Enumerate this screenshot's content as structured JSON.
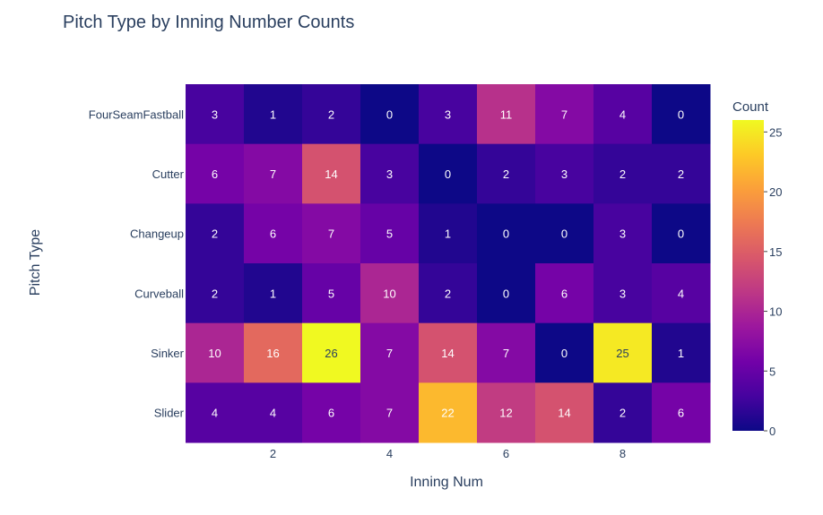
{
  "chart_data": {
    "type": "heatmap",
    "title": "Pitch Type by Inning Number Counts",
    "xlabel": "Inning Num",
    "ylabel": "Pitch Type",
    "x": [
      1,
      2,
      3,
      4,
      5,
      6,
      7,
      8,
      9
    ],
    "x_tick_labels": [
      "2",
      "4",
      "6",
      "8"
    ],
    "x_tick_values": [
      2,
      4,
      6,
      8
    ],
    "y": [
      "FourSeamFastball",
      "Cutter",
      "Changeup",
      "Curveball",
      "Sinker",
      "Slider"
    ],
    "z": [
      [
        3,
        1,
        2,
        0,
        3,
        11,
        7,
        4,
        0
      ],
      [
        6,
        7,
        14,
        3,
        0,
        2,
        3,
        2,
        2
      ],
      [
        2,
        6,
        7,
        5,
        1,
        0,
        0,
        3,
        0
      ],
      [
        2,
        1,
        5,
        10,
        2,
        0,
        6,
        3,
        4
      ],
      [
        10,
        16,
        26,
        7,
        14,
        7,
        0,
        25,
        1
      ],
      [
        4,
        4,
        6,
        7,
        22,
        12,
        14,
        2,
        6
      ]
    ],
    "zlim": [
      0,
      26
    ],
    "colorbar": {
      "title": "Count",
      "tick_values": [
        0,
        5,
        10,
        15,
        20,
        25
      ],
      "tick_labels": [
        "0",
        "5",
        "10",
        "15",
        "20",
        "25"
      ]
    },
    "colorscale": [
      "#0d0887",
      "#46039f",
      "#7201a8",
      "#9c179e",
      "#bd3786",
      "#d8576b",
      "#ed7953",
      "#fb9f3a",
      "#fdca26",
      "#f0f921"
    ],
    "text_color_dark": "#ffffff",
    "text_color_light": "#2a3f5f"
  }
}
